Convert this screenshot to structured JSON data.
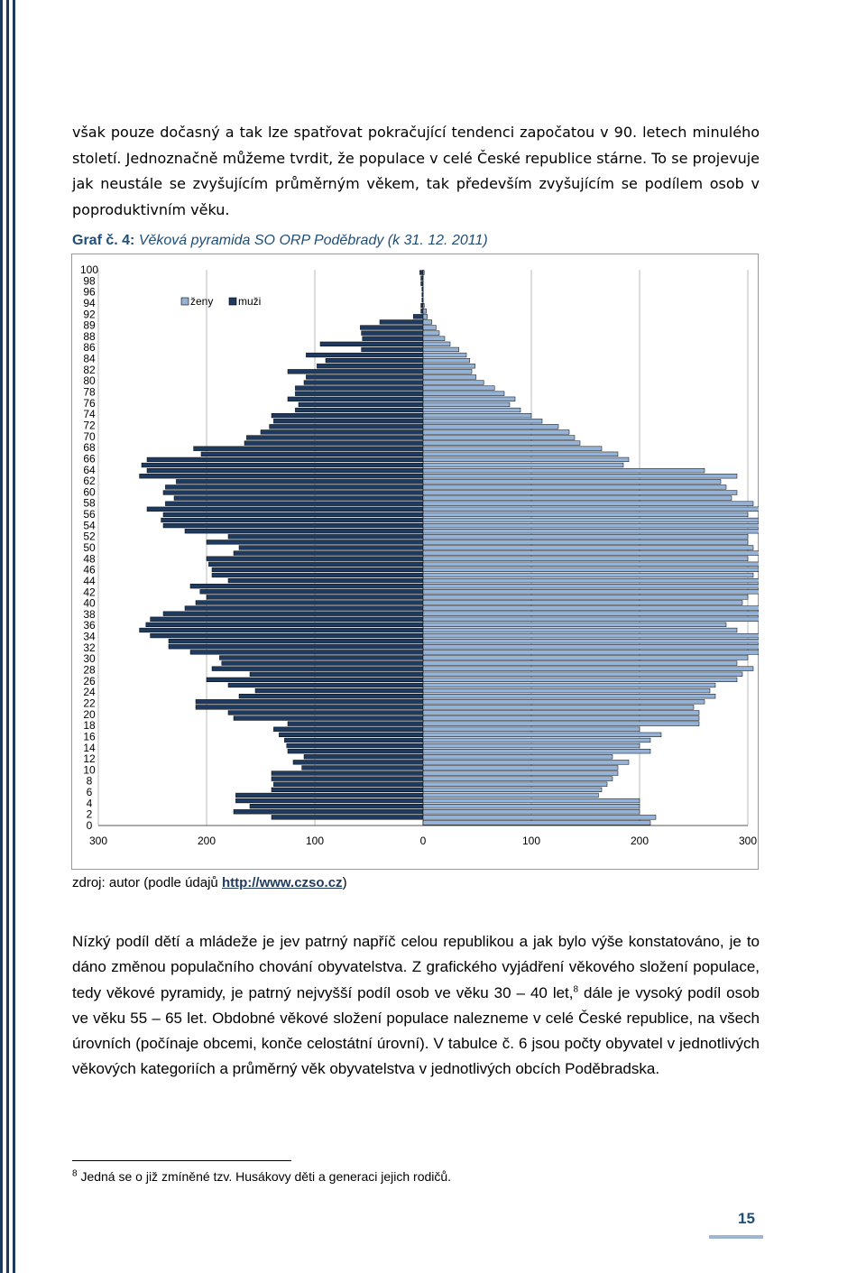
{
  "paragraph1": "však pouze dočasný a tak lze spatřovat pokračující tendenci započatou v 90. letech minulého století. Jednoznačně můžeme tvrdit, že populace v celé České republice stárne. To se projevuje jak neustále se zvyšujícím průměrným věkem, tak především zvyšujícím se podílem osob v poproduktivním věku.",
  "figure": {
    "label": "Graf č. 4:",
    "caption": "Věková pyramida SO ORP Poděbrady (k 31. 12. 2011)"
  },
  "source": {
    "prefix": "zdroj: autor (podle údajů ",
    "link": "http://www.czso.cz",
    "suffix": ")"
  },
  "paragraph2_before_sup": "Nízký podíl dětí a mládeže je jev patrný napříč celou republikou a jak bylo výše konstatováno, je to dáno změnou populačního chování obyvatelstva. Z grafického vyjádření věkového složení populace, tedy věkové pyramidy, je patrný nejvyšší podíl osob ve věku 30 – 40 let,",
  "paragraph2_sup": "8",
  "paragraph2_after_sup": " dále je vysoký podíl osob ve věku 55 – 65 let. Obdobné věkové složení populace nalezneme v celé České republice, na všech úrovních (počínaje obcemi, konče celostátní úrovní). V tabulce č. 6 jsou počty obyvatel v jednotlivých věkových kategoriích a průměrný věk obyvatelstva v jednotlivých obcích Poděbradska.",
  "footnote_number": "8",
  "footnote_text": "Jedná se o již zmíněné tzv. Husákovy děti a generaci jejich rodičů.",
  "page_number": "15",
  "colors": {
    "muzi": "#1f3a5f",
    "zeny": "#95b3d7",
    "accent": "#1f4e79"
  },
  "chart_data": {
    "type": "bar",
    "orientation": "horizontal-population-pyramid",
    "y_tick_labels": [
      "100",
      "98",
      "96",
      "94",
      "92",
      "89",
      "88",
      "86",
      "84",
      "82",
      "80",
      "78",
      "76",
      "74",
      "72",
      "70",
      "68",
      "66",
      "64",
      "62",
      "60",
      "58",
      "56",
      "54",
      "52",
      "50",
      "48",
      "46",
      "44",
      "42",
      "40",
      "38",
      "36",
      "34",
      "32",
      "30",
      "28",
      "26",
      "24",
      "22",
      "20",
      "18",
      "16",
      "14",
      "12",
      "10",
      "8",
      "6",
      "4",
      "2",
      "0"
    ],
    "x_tick_labels": [
      "300",
      "200",
      "100",
      "0",
      "100",
      "200",
      "300"
    ],
    "xlim": [
      -300,
      300
    ],
    "legend": [
      "ženy",
      "muži"
    ],
    "legend_position": "top-left",
    "grid": true,
    "ages": [
      100,
      99,
      98,
      97,
      96,
      95,
      94,
      93,
      92,
      91,
      90,
      89,
      88,
      87,
      86,
      85,
      84,
      83,
      82,
      81,
      80,
      79,
      78,
      77,
      76,
      75,
      74,
      73,
      72,
      71,
      70,
      69,
      68,
      67,
      66,
      65,
      64,
      63,
      62,
      61,
      60,
      59,
      58,
      57,
      56,
      55,
      54,
      53,
      52,
      51,
      50,
      49,
      48,
      47,
      46,
      45,
      44,
      43,
      42,
      41,
      40,
      39,
      38,
      37,
      36,
      35,
      34,
      33,
      32,
      31,
      30,
      29,
      28,
      27,
      26,
      25,
      24,
      23,
      22,
      21,
      20,
      19,
      18,
      17,
      16,
      15,
      14,
      13,
      12,
      11,
      10,
      9,
      8,
      7,
      6,
      5,
      4,
      3,
      2,
      1,
      0
    ],
    "series": [
      {
        "name": "ženy",
        "values": [
          1,
          0,
          0,
          0,
          0,
          0,
          1,
          3,
          4,
          8,
          12,
          15,
          20,
          25,
          33,
          40,
          43,
          48,
          45,
          49,
          56,
          66,
          75,
          85,
          80,
          90,
          100,
          110,
          125,
          135,
          140,
          145,
          165,
          180,
          190,
          185,
          260,
          290,
          275,
          280,
          290,
          285,
          305,
          320,
          300,
          310,
          330,
          320,
          300,
          300,
          305,
          315,
          300,
          320,
          310,
          305,
          320,
          325,
          315,
          300,
          295,
          320,
          330,
          320,
          280,
          290,
          315,
          345,
          340,
          310,
          300,
          290,
          305,
          295,
          290,
          270,
          265,
          270,
          260,
          250,
          255,
          255,
          255,
          200,
          220,
          210,
          200,
          210,
          175,
          190,
          180,
          180,
          175,
          170,
          165,
          162,
          200,
          200,
          200,
          215,
          210
        ]
      },
      {
        "name": "muži",
        "values": [
          3,
          2,
          2,
          1,
          1,
          1,
          2,
          2,
          9,
          40,
          58,
          57,
          56,
          95,
          57,
          108,
          90,
          98,
          125,
          108,
          110,
          118,
          118,
          125,
          115,
          118,
          140,
          138,
          142,
          150,
          163,
          165,
          212,
          205,
          255,
          260,
          255,
          262,
          228,
          238,
          240,
          230,
          238,
          255,
          240,
          242,
          240,
          220,
          180,
          200,
          170,
          175,
          200,
          198,
          195,
          195,
          180,
          215,
          206,
          200,
          210,
          220,
          240,
          252,
          256,
          262,
          252,
          235,
          235,
          215,
          188,
          186,
          195,
          160,
          200,
          180,
          155,
          170,
          210,
          210,
          180,
          175,
          125,
          138,
          133,
          128,
          126,
          125,
          110,
          120,
          112,
          140,
          140,
          138,
          140,
          173,
          173,
          160,
          175,
          140,
          0
        ]
      }
    ]
  }
}
